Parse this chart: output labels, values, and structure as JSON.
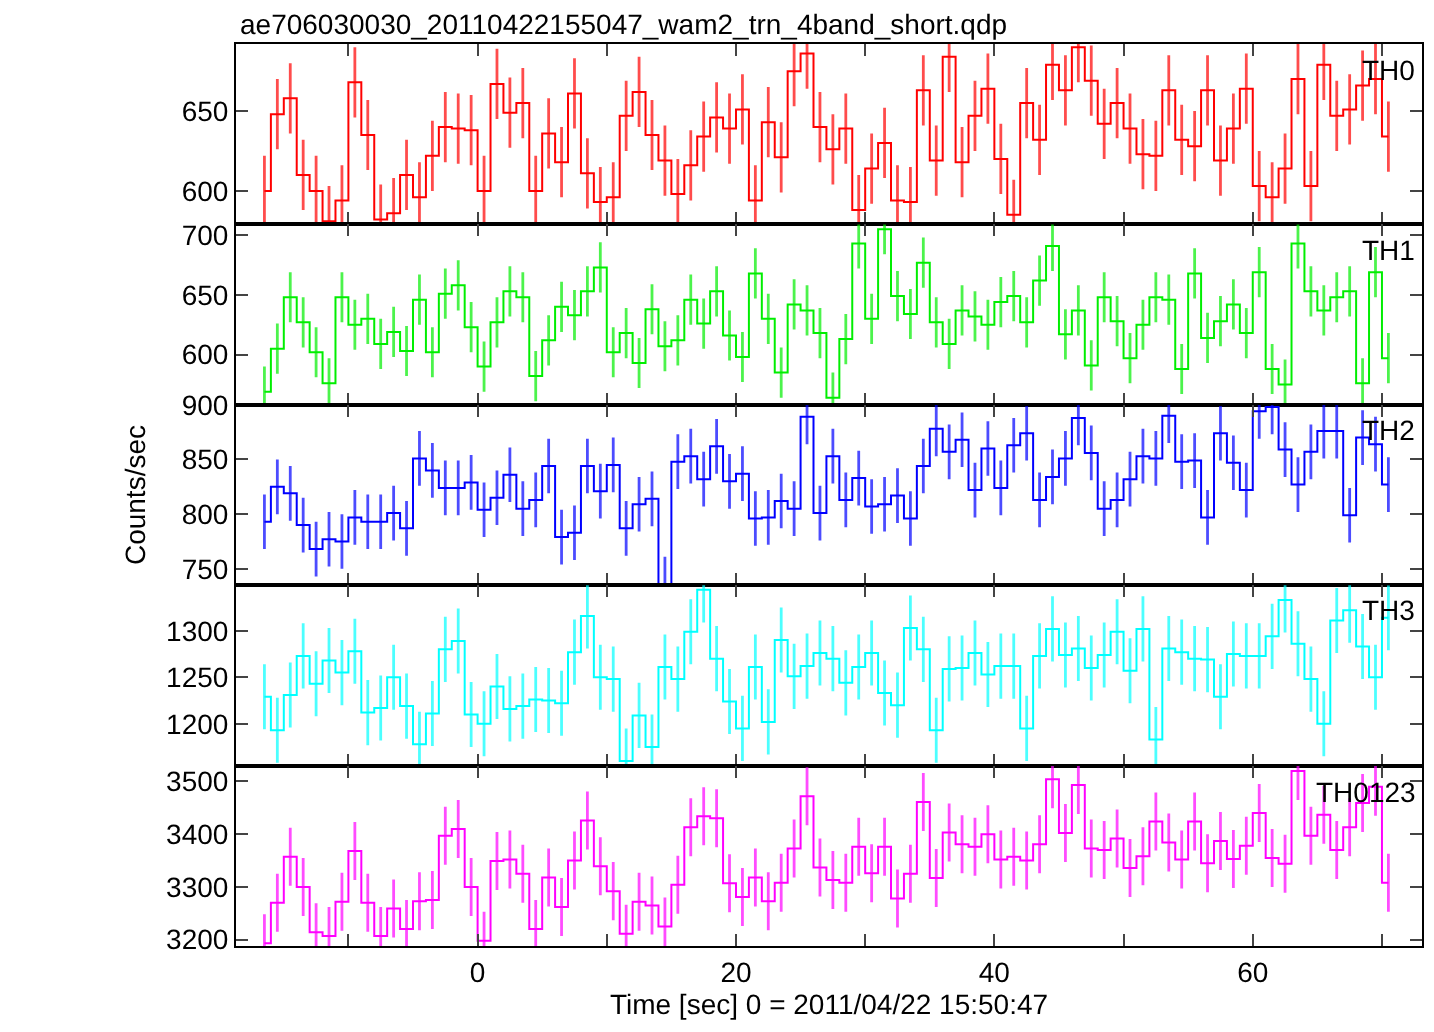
{
  "chart_data": [
    {
      "type": "step",
      "title": "ae706030030_20110422155047_wam2_trn_4band_short.qdp",
      "annotations": [
        "TH0"
      ],
      "tick_labels": "y",
      "xlim": [
        -18.7,
        73.1
      ],
      "xticks": [
        {
          "value": -10,
          "label": null
        },
        0,
        {
          "value": 10,
          "label": null
        },
        20,
        {
          "value": 30,
          "label": null
        },
        40,
        {
          "value": 50,
          "label": null
        },
        60,
        {
          "value": 70,
          "label": null
        }
      ],
      "ylim": [
        579,
        692
      ],
      "yticks": [
        600,
        650
      ],
      "marker": "none",
      "x": [
        -16.5,
        -15.5,
        -14.5,
        -13.5,
        -12.5,
        -11.5,
        -10.5,
        -9.5,
        -8.5,
        -7.5,
        -6.5,
        -5.5,
        -4.5,
        -3.5,
        -2.5,
        -1.5,
        -0.5,
        0.5,
        1.5,
        2.5,
        3.5,
        4.5,
        5.5,
        6.5,
        7.5,
        8.5,
        9.5,
        10.5,
        11.5,
        12.5,
        13.5,
        14.5,
        15.5,
        16.5,
        17.5,
        18.5,
        19.5,
        20.5,
        21.5,
        22.5,
        23.5,
        24.5,
        25.5,
        26.5,
        27.5,
        28.5,
        29.5,
        30.5,
        31.5,
        32.5,
        33.5,
        34.5,
        35.5,
        36.5,
        37.5,
        38.5,
        39.5,
        40.5,
        41.5,
        42.5,
        43.5,
        44.5,
        45.5,
        46.5,
        47.5,
        48.5,
        49.5,
        50.5,
        51.5,
        52.5,
        53.5,
        54.5,
        55.5,
        56.5,
        57.5,
        58.5,
        59.5,
        60.5,
        61.5,
        62.5,
        63.5,
        64.5,
        65.5,
        66.5,
        67.5,
        68.5,
        69.5,
        70.5
      ],
      "series": [
        {
          "color": "#ff0000",
          "values": [
            600,
            648,
            658,
            610,
            600,
            581,
            594,
            668,
            635,
            582,
            586,
            610,
            596,
            622,
            640,
            639,
            638,
            600,
            667,
            649,
            655,
            600,
            636,
            618,
            661,
            611,
            593,
            596,
            647,
            662,
            635,
            619,
            598,
            616,
            634,
            646,
            639,
            651,
            594,
            643,
            621,
            675,
            686,
            640,
            626,
            639,
            588,
            614,
            630,
            594,
            593,
            663,
            619,
            684,
            618,
            647,
            664,
            620,
            585,
            655,
            632,
            679,
            663,
            690,
            669,
            642,
            655,
            639,
            623,
            622,
            663,
            632,
            628,
            663,
            619,
            639,
            664,
            603,
            596,
            614,
            670,
            603,
            679,
            647,
            651,
            666,
            670,
            634
          ],
          "errors": [
            22,
            22,
            22,
            22,
            22,
            22,
            22,
            22,
            22,
            22,
            22,
            22,
            22,
            22,
            22,
            22,
            22,
            22,
            22,
            22,
            22,
            22,
            22,
            22,
            22,
            22,
            22,
            22,
            22,
            22,
            22,
            22,
            22,
            22,
            22,
            22,
            22,
            22,
            22,
            22,
            22,
            22,
            22,
            22,
            22,
            22,
            22,
            22,
            22,
            22,
            22,
            22,
            22,
            22,
            22,
            22,
            22,
            22,
            22,
            22,
            22,
            22,
            22,
            22,
            22,
            22,
            22,
            22,
            22,
            22,
            22,
            22,
            22,
            22,
            22,
            22,
            22,
            22,
            22,
            22,
            22,
            22,
            22,
            22,
            22,
            22,
            22,
            22
          ]
        }
      ]
    },
    {
      "type": "step",
      "annotations": [
        "TH1"
      ],
      "tick_labels": "y",
      "xlim": [
        -18.7,
        73.1
      ],
      "xticks": [
        {
          "value": -10,
          "label": null
        },
        0,
        {
          "value": 10,
          "label": null
        },
        20,
        {
          "value": 30,
          "label": null
        },
        40,
        {
          "value": 50,
          "label": null
        },
        60,
        {
          "value": 70,
          "label": null
        }
      ],
      "ylim": [
        558,
        709
      ],
      "yticks": [
        600,
        650,
        700
      ],
      "marker": "none",
      "x": [
        -16.5,
        -15.5,
        -14.5,
        -13.5,
        -12.5,
        -11.5,
        -10.5,
        -9.5,
        -8.5,
        -7.5,
        -6.5,
        -5.5,
        -4.5,
        -3.5,
        -2.5,
        -1.5,
        -0.5,
        0.5,
        1.5,
        2.5,
        3.5,
        4.5,
        5.5,
        6.5,
        7.5,
        8.5,
        9.5,
        10.5,
        11.5,
        12.5,
        13.5,
        14.5,
        15.5,
        16.5,
        17.5,
        18.5,
        19.5,
        20.5,
        21.5,
        22.5,
        23.5,
        24.5,
        25.5,
        26.5,
        27.5,
        28.5,
        29.5,
        30.5,
        31.5,
        32.5,
        33.5,
        34.5,
        35.5,
        36.5,
        37.5,
        38.5,
        39.5,
        40.5,
        41.5,
        42.5,
        43.5,
        44.5,
        45.5,
        46.5,
        47.5,
        48.5,
        49.5,
        50.5,
        51.5,
        52.5,
        53.5,
        54.5,
        55.5,
        56.5,
        57.5,
        58.5,
        59.5,
        60.5,
        61.5,
        62.5,
        63.5,
        64.5,
        65.5,
        66.5,
        67.5,
        68.5,
        69.5,
        70.5
      ],
      "series": [
        {
          "color": "#00ee00",
          "values": [
            569,
            605,
            648,
            627,
            602,
            576,
            648,
            625,
            630,
            609,
            619,
            603,
            646,
            602,
            651,
            658,
            623,
            590,
            627,
            653,
            648,
            582,
            612,
            640,
            633,
            653,
            673,
            602,
            618,
            593,
            638,
            607,
            612,
            646,
            626,
            653,
            616,
            598,
            668,
            630,
            585,
            642,
            637,
            618,
            564,
            613,
            693,
            630,
            705,
            649,
            634,
            677,
            627,
            609,
            637,
            632,
            625,
            644,
            649,
            627,
            662,
            691,
            617,
            637,
            591,
            648,
            628,
            597,
            625,
            648,
            646,
            588,
            668,
            614,
            628,
            642,
            618,
            669,
            588,
            575,
            693,
            653,
            637,
            648,
            653,
            576,
            669,
            597
          ],
          "errors": [
            21,
            21,
            21,
            21,
            21,
            21,
            21,
            21,
            21,
            21,
            21,
            21,
            21,
            21,
            21,
            21,
            21,
            21,
            21,
            21,
            21,
            21,
            21,
            21,
            21,
            21,
            21,
            21,
            21,
            21,
            21,
            21,
            21,
            21,
            21,
            21,
            21,
            21,
            21,
            21,
            21,
            21,
            21,
            21,
            21,
            21,
            21,
            21,
            21,
            21,
            21,
            21,
            21,
            21,
            21,
            21,
            21,
            21,
            21,
            21,
            21,
            21,
            21,
            21,
            21,
            21,
            21,
            21,
            21,
            21,
            21,
            21,
            21,
            21,
            21,
            21,
            21,
            21,
            21,
            21,
            21,
            21,
            21,
            21,
            21,
            21,
            21,
            21
          ]
        }
      ]
    },
    {
      "type": "step",
      "annotations": [
        "TH2"
      ],
      "ylabel": "Counts/sec",
      "tick_labels": "y",
      "xlim": [
        -18.7,
        73.1
      ],
      "xticks": [
        {
          "value": -10,
          "label": null
        },
        0,
        {
          "value": 10,
          "label": null
        },
        20,
        {
          "value": 30,
          "label": null
        },
        40,
        {
          "value": 50,
          "label": null
        },
        60,
        {
          "value": 70,
          "label": null
        }
      ],
      "ylim": [
        735,
        900
      ],
      "yticks": [
        750,
        800,
        850,
        900
      ],
      "marker": "none",
      "x": [
        -16.5,
        -15.5,
        -14.5,
        -13.5,
        -12.5,
        -11.5,
        -10.5,
        -9.5,
        -8.5,
        -7.5,
        -6.5,
        -5.5,
        -4.5,
        -3.5,
        -2.5,
        -1.5,
        -0.5,
        0.5,
        1.5,
        2.5,
        3.5,
        4.5,
        5.5,
        6.5,
        7.5,
        8.5,
        9.5,
        10.5,
        11.5,
        12.5,
        13.5,
        14.5,
        15.5,
        16.5,
        17.5,
        18.5,
        19.5,
        20.5,
        21.5,
        22.5,
        23.5,
        24.5,
        25.5,
        26.5,
        27.5,
        28.5,
        29.5,
        30.5,
        31.5,
        32.5,
        33.5,
        34.5,
        35.5,
        36.5,
        37.5,
        38.5,
        39.5,
        40.5,
        41.5,
        42.5,
        43.5,
        44.5,
        45.5,
        46.5,
        47.5,
        48.5,
        49.5,
        50.5,
        51.5,
        52.5,
        53.5,
        54.5,
        55.5,
        56.5,
        57.5,
        58.5,
        59.5,
        60.5,
        61.5,
        62.5,
        63.5,
        64.5,
        65.5,
        66.5,
        67.5,
        68.5,
        69.5,
        70.5
      ],
      "series": [
        {
          "color": "#0000ff",
          "values": [
            793,
            825,
            819,
            790,
            768,
            777,
            775,
            797,
            793,
            793,
            801,
            787,
            851,
            840,
            824,
            824,
            829,
            804,
            815,
            836,
            805,
            813,
            844,
            779,
            783,
            844,
            821,
            845,
            787,
            809,
            814,
            736,
            848,
            853,
            832,
            862,
            830,
            837,
            796,
            797,
            812,
            805,
            889,
            801,
            853,
            813,
            833,
            807,
            809,
            817,
            796,
            844,
            878,
            857,
            868,
            822,
            860,
            824,
            863,
            874,
            813,
            834,
            851,
            888,
            856,
            805,
            813,
            832,
            853,
            851,
            890,
            848,
            849,
            797,
            874,
            847,
            822,
            894,
            898,
            859,
            827,
            857,
            876,
            876,
            799,
            870,
            864,
            827
          ],
          "errors": [
            25,
            25,
            25,
            25,
            25,
            25,
            25,
            25,
            25,
            25,
            25,
            25,
            25,
            25,
            25,
            25,
            25,
            25,
            25,
            25,
            25,
            25,
            25,
            25,
            25,
            25,
            25,
            25,
            25,
            25,
            25,
            25,
            25,
            25,
            25,
            25,
            25,
            25,
            25,
            25,
            25,
            25,
            25,
            25,
            25,
            25,
            25,
            25,
            25,
            25,
            25,
            25,
            25,
            25,
            25,
            25,
            25,
            25,
            25,
            25,
            25,
            25,
            25,
            25,
            25,
            25,
            25,
            25,
            25,
            25,
            25,
            25,
            25,
            25,
            25,
            25,
            25,
            25,
            25,
            25,
            25,
            25,
            25,
            25,
            25,
            25,
            25,
            25
          ]
        }
      ]
    },
    {
      "type": "step",
      "annotations": [
        "TH3"
      ],
      "tick_labels": "y",
      "xlim": [
        -18.7,
        73.1
      ],
      "xticks": [
        {
          "value": -10,
          "label": null
        },
        0,
        {
          "value": 10,
          "label": null
        },
        20,
        {
          "value": 30,
          "label": null
        },
        40,
        {
          "value": 50,
          "label": null
        },
        60,
        {
          "value": 70,
          "label": null
        }
      ],
      "ylim": [
        1155,
        1349
      ],
      "yticks": [
        1200,
        1250,
        1300
      ],
      "marker": "none",
      "x": [
        -16.5,
        -15.5,
        -14.5,
        -13.5,
        -12.5,
        -11.5,
        -10.5,
        -9.5,
        -8.5,
        -7.5,
        -6.5,
        -5.5,
        -4.5,
        -3.5,
        -2.5,
        -1.5,
        -0.5,
        0.5,
        1.5,
        2.5,
        3.5,
        4.5,
        5.5,
        6.5,
        7.5,
        8.5,
        9.5,
        10.5,
        11.5,
        12.5,
        13.5,
        14.5,
        15.5,
        16.5,
        17.5,
        18.5,
        19.5,
        20.5,
        21.5,
        22.5,
        23.5,
        24.5,
        25.5,
        26.5,
        27.5,
        28.5,
        29.5,
        30.5,
        31.5,
        32.5,
        33.5,
        34.5,
        35.5,
        36.5,
        37.5,
        38.5,
        39.5,
        40.5,
        41.5,
        42.5,
        43.5,
        44.5,
        45.5,
        46.5,
        47.5,
        48.5,
        49.5,
        50.5,
        51.5,
        52.5,
        53.5,
        54.5,
        55.5,
        56.5,
        57.5,
        58.5,
        59.5,
        60.5,
        61.5,
        62.5,
        63.5,
        64.5,
        65.5,
        66.5,
        67.5,
        68.5,
        69.5,
        70.5
      ],
      "series": [
        {
          "color": "#00ffff",
          "values": [
            1229,
            1193,
            1231,
            1273,
            1243,
            1268,
            1255,
            1278,
            1212,
            1217,
            1250,
            1219,
            1178,
            1211,
            1280,
            1289,
            1210,
            1200,
            1240,
            1216,
            1219,
            1226,
            1225,
            1222,
            1277,
            1316,
            1250,
            1248,
            1160,
            1209,
            1175,
            1261,
            1248,
            1299,
            1344,
            1270,
            1224,
            1195,
            1261,
            1202,
            1290,
            1251,
            1262,
            1276,
            1270,
            1244,
            1261,
            1276,
            1233,
            1220,
            1303,
            1280,
            1193,
            1259,
            1260,
            1276,
            1253,
            1262,
            1262,
            1195,
            1273,
            1302,
            1274,
            1281,
            1260,
            1274,
            1299,
            1257,
            1302,
            1183,
            1281,
            1277,
            1270,
            1269,
            1229,
            1275,
            1273,
            1273,
            1294,
            1333,
            1286,
            1248,
            1200,
            1311,
            1322,
            1283,
            1250,
            1314
          ],
          "errors": [
            35,
            35,
            35,
            35,
            35,
            35,
            35,
            35,
            35,
            35,
            35,
            35,
            35,
            35,
            35,
            35,
            35,
            35,
            35,
            35,
            35,
            35,
            35,
            35,
            35,
            35,
            35,
            35,
            35,
            35,
            35,
            35,
            35,
            35,
            35,
            35,
            35,
            35,
            35,
            35,
            35,
            35,
            35,
            35,
            35,
            35,
            35,
            35,
            35,
            35,
            35,
            35,
            35,
            35,
            35,
            35,
            35,
            35,
            35,
            35,
            35,
            35,
            35,
            35,
            35,
            35,
            35,
            35,
            35,
            35,
            35,
            35,
            35,
            35,
            35,
            35,
            35,
            35,
            35,
            35,
            35,
            35,
            35,
            35,
            35,
            35,
            35,
            35
          ]
        }
      ]
    },
    {
      "type": "step",
      "annotations": [
        "TH0123"
      ],
      "xlabel": "Time [sec] 0 = 2011/04/22 15:50:47",
      "xlim": [
        -18.7,
        73.1
      ],
      "xticks": [
        {
          "value": -10,
          "label": null
        },
        0,
        {
          "value": 10,
          "label": null
        },
        20,
        {
          "value": 30,
          "label": null
        },
        40,
        {
          "value": 50,
          "label": null
        },
        60,
        {
          "value": 70,
          "label": null
        }
      ],
      "ylim": [
        3188,
        3530
      ],
      "yticks": [
        3200,
        3300,
        3400,
        3500
      ],
      "marker": "none",
      "x": [
        -16.5,
        -15.5,
        -14.5,
        -13.5,
        -12.5,
        -11.5,
        -10.5,
        -9.5,
        -8.5,
        -7.5,
        -6.5,
        -5.5,
        -4.5,
        -3.5,
        -2.5,
        -1.5,
        -0.5,
        0.5,
        1.5,
        2.5,
        3.5,
        4.5,
        5.5,
        6.5,
        7.5,
        8.5,
        9.5,
        10.5,
        11.5,
        12.5,
        13.5,
        14.5,
        15.5,
        16.5,
        17.5,
        18.5,
        19.5,
        20.5,
        21.5,
        22.5,
        23.5,
        24.5,
        25.5,
        26.5,
        27.5,
        28.5,
        29.5,
        30.5,
        31.5,
        32.5,
        33.5,
        34.5,
        35.5,
        36.5,
        37.5,
        38.5,
        39.5,
        40.5,
        41.5,
        42.5,
        43.5,
        44.5,
        45.5,
        46.5,
        47.5,
        48.5,
        49.5,
        50.5,
        51.5,
        52.5,
        53.5,
        54.5,
        55.5,
        56.5,
        57.5,
        58.5,
        59.5,
        60.5,
        61.5,
        62.5,
        63.5,
        64.5,
        65.5,
        66.5,
        67.5,
        68.5,
        69.5,
        70.5
      ],
      "series": [
        {
          "color": "#ff00ff",
          "values": [
            3193,
            3270,
            3357,
            3300,
            3214,
            3207,
            3272,
            3368,
            3270,
            3207,
            3259,
            3220,
            3273,
            3275,
            3397,
            3410,
            3300,
            3198,
            3349,
            3352,
            3325,
            3220,
            3318,
            3262,
            3350,
            3426,
            3339,
            3292,
            3211,
            3272,
            3265,
            3225,
            3304,
            3413,
            3434,
            3430,
            3307,
            3281,
            3318,
            3273,
            3308,
            3373,
            3472,
            3337,
            3313,
            3308,
            3376,
            3326,
            3376,
            3278,
            3325,
            3461,
            3317,
            3403,
            3381,
            3376,
            3400,
            3352,
            3357,
            3350,
            3381,
            3504,
            3402,
            3493,
            3373,
            3370,
            3392,
            3336,
            3358,
            3424,
            3384,
            3352,
            3424,
            3345,
            3387,
            3353,
            3378,
            3440,
            3355,
            3344,
            3520,
            3397,
            3437,
            3370,
            3413,
            3459,
            3490,
            3308
          ],
          "errors": [
            55,
            55,
            55,
            55,
            55,
            55,
            55,
            55,
            55,
            55,
            55,
            55,
            55,
            55,
            55,
            55,
            55,
            55,
            55,
            55,
            55,
            55,
            55,
            55,
            55,
            55,
            55,
            55,
            55,
            55,
            55,
            55,
            55,
            55,
            55,
            55,
            55,
            55,
            55,
            55,
            55,
            55,
            55,
            55,
            55,
            55,
            55,
            55,
            55,
            55,
            55,
            55,
            55,
            55,
            55,
            55,
            55,
            55,
            55,
            55,
            55,
            55,
            55,
            55,
            55,
            55,
            55,
            55,
            55,
            55,
            55,
            55,
            55,
            55,
            55,
            55,
            55,
            55,
            55,
            55,
            55,
            55,
            55,
            55,
            55,
            55,
            55,
            55
          ]
        }
      ]
    }
  ]
}
